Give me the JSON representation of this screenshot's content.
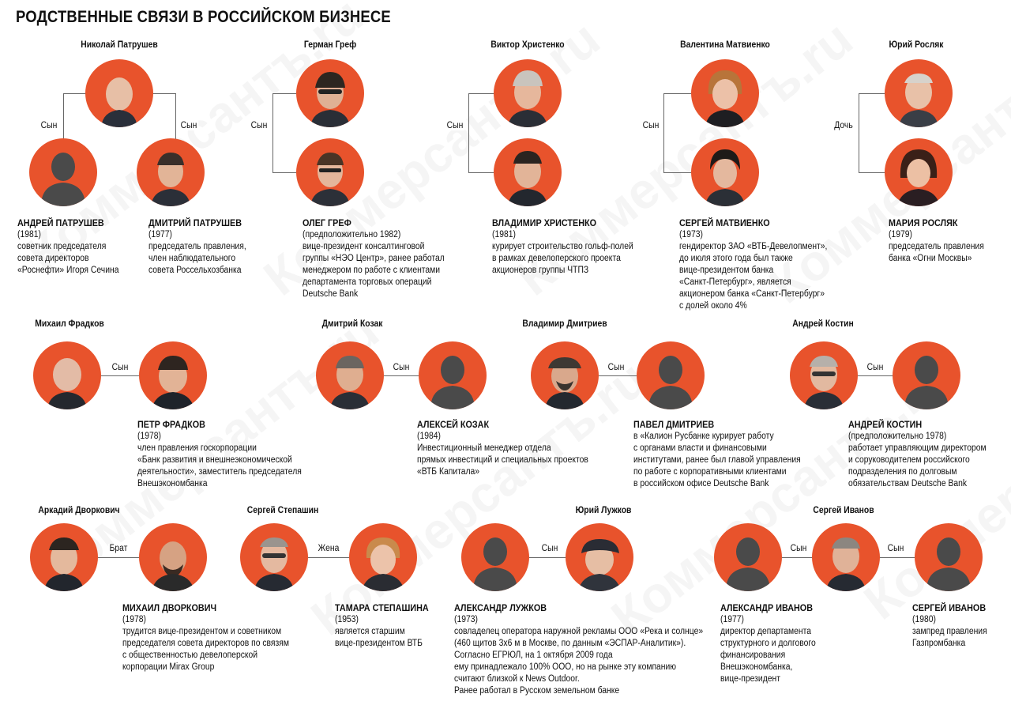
{
  "title": "РОДСТВЕННЫЕ СВЯЗИ В РОССИЙСКОМ БИЗНЕСЕ",
  "watermark": "Коммерсантъ.ru",
  "colors": {
    "photo_bg": "#e8532c",
    "silhouette": "#4a4a4a",
    "line": "#666666"
  },
  "group_names": {
    "patrushev": "Николай Патрушев",
    "gref": "Герман Греф",
    "khristenko": "Виктор Христенко",
    "matvienko": "Валентина Матвиенко",
    "roslyak": "Юрий Росляк",
    "fradkov": "Михаил Фрадков",
    "kozak": "Дмитрий Козак",
    "dmitriev": "Владимир Дмитриев",
    "kostin": "Андрей Костин",
    "dvorkovich": "Аркадий Дворкович",
    "stepashin": "Сергей Степашин",
    "luzhkov": "Юрий Лужков",
    "ivanov": "Сергей Иванов"
  },
  "relations": {
    "son": "Сын",
    "daughter": "Дочь",
    "brother": "Брат",
    "wife": "Жена"
  },
  "people": {
    "a_patrushev": {
      "name": "АНДРЕЙ ПАТРУШЕВ",
      "lines": [
        "(1981)",
        "советник председателя",
        "совета директоров",
        "«Роснефти» Игоря Сечина"
      ]
    },
    "d_patrushev": {
      "name": "ДМИТРИЙ ПАТРУШЕВ",
      "lines": [
        "(1977)",
        "председатель правления,",
        "член наблюдательного",
        "совета Россельхозбанка"
      ]
    },
    "o_gref": {
      "name": "ОЛЕГ ГРЕФ",
      "lines": [
        "(предположительно 1982)",
        "вице-президент консалтинговой",
        "группы «НЭО Центр», ранее работал",
        "менеджером по работе с клиентами",
        "департамента торговых операций",
        "Deutsche Bank"
      ]
    },
    "v_khristenko": {
      "name": "ВЛАДИМИР ХРИСТЕНКО",
      "lines": [
        "(1981)",
        "курирует строительство гольф-полей",
        "в рамках девелоперского проекта",
        "акционеров группы ЧТПЗ"
      ]
    },
    "s_matvienko": {
      "name": "СЕРГЕЙ МАТВИЕНКО",
      "lines": [
        "(1973)",
        "гендиректор ЗАО «ВТБ-Девелопмент»,",
        "до июля этого года был также",
        "вице-президентом банка",
        "«Санкт-Петербург», является",
        "акционером банка «Санкт-Петербург»",
        "с долей около 4%"
      ]
    },
    "m_roslyak": {
      "name": "МАРИЯ РОСЛЯК",
      "lines": [
        "(1979)",
        "председатель правления",
        "банка «Огни Москвы»"
      ]
    },
    "p_fradkov": {
      "name": "ПЕТР ФРАДКОВ",
      "lines": [
        "(1978)",
        "член правления госкорпорации",
        "«Банк развития и внешнеэкономической",
        "деятельности», заместитель председателя",
        "Внешэкономбанка"
      ]
    },
    "a_kozak": {
      "name": "АЛЕКСЕЙ КОЗАК",
      "lines": [
        "(1984)",
        "Инвестиционный менеджер отдела",
        "прямых инвестиций и специальных проектов",
        "«ВТБ Капитала»"
      ]
    },
    "p_dmitriev": {
      "name": "ПАВЕЛ ДМИТРИЕВ",
      "lines": [
        "в «Калион Русбанке курирует работу",
        "с органами власти и финансовыми",
        "институтами, ранее был главой управления",
        "по работе с корпоративными клиентами",
        "в российском офисе Deutsche Bank"
      ]
    },
    "a_kostin": {
      "name": "АНДРЕЙ КОСТИН",
      "lines": [
        "(предположительно 1978)",
        "работает управляющим директором",
        "и соруководителем российского",
        "подразделения по долговым",
        "обязательствам Deutsche Bank"
      ]
    },
    "m_dvorkovich": {
      "name": "МИХАИЛ ДВОРКОВИЧ",
      "lines": [
        "(1978)",
        "трудится вице-президентом и советником",
        "председателя совета директоров по связям",
        "с общественностью девелоперской",
        "корпорации Mirax Group"
      ]
    },
    "t_stepashina": {
      "name": "ТАМАРА СТЕПАШИНА",
      "lines": [
        "(1953)",
        "является старшим",
        "вице-президентом ВТБ"
      ]
    },
    "a_luzhkov": {
      "name": "АЛЕКСАНДР ЛУЖКОВ",
      "lines": [
        "(1973)",
        "совладелец оператора наружной рекламы ООО «Река и солнце»",
        "(460 щитов 3х6 м в Москве, по данным «ЭСПАР-Аналитик»).",
        "Согласно ЕГРЮЛ, на 1 октября 2009 года",
        "ему принадлежало 100% ООО, но на рынке эту компанию",
        "считают близкой к News Outdoor.",
        "Ранее работал в Русском земельном банке"
      ]
    },
    "a_ivanov": {
      "name": "АЛЕКСАНДР ИВАНОВ",
      "lines": [
        "(1977)",
        "директор департамента",
        "структурного и долгового",
        "финансирования",
        "Внешэкономбанка,",
        "вице-президент"
      ]
    },
    "s_ivanov": {
      "name": "СЕРГЕЙ ИВАНОВ",
      "lines": [
        "(1980)",
        "зампред правления",
        "Газпромбанка"
      ]
    }
  }
}
